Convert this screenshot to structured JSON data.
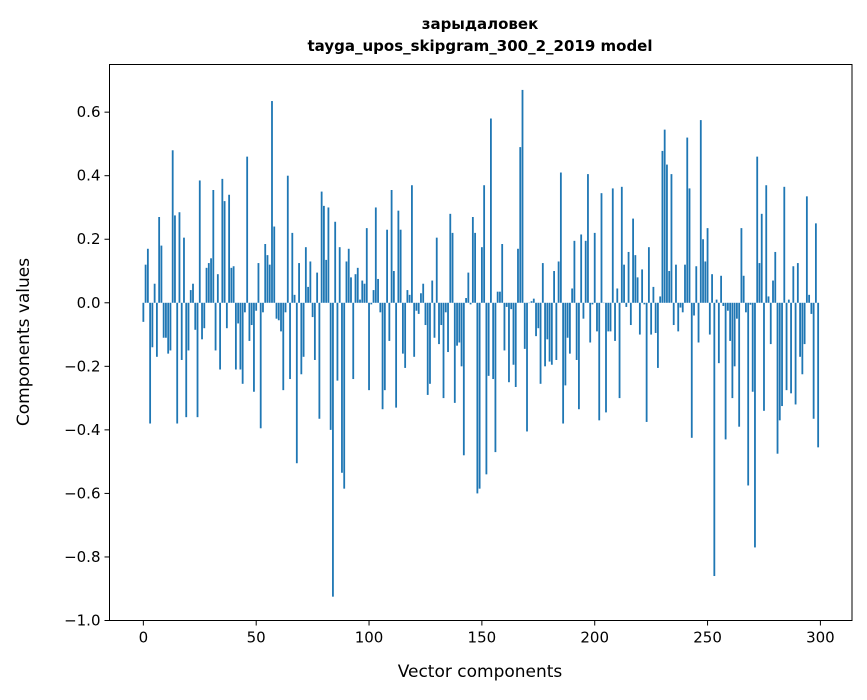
{
  "chart_data": {
    "type": "bar",
    "title": "зарыдаловек",
    "subtitle": "tayga_upos_skipgram_300_2_2019 model",
    "xlabel": "Vector components",
    "ylabel": "Components values",
    "xlim": [
      -15,
      314
    ],
    "ylim": [
      -1.0,
      0.75
    ],
    "xticks": [
      0,
      50,
      100,
      150,
      200,
      250,
      300
    ],
    "xtick_labels": [
      "0",
      "50",
      "100",
      "150",
      "200",
      "250",
      "300"
    ],
    "yticks": [
      -1.0,
      -0.8,
      -0.6,
      -0.4,
      -0.2,
      0.0,
      0.2,
      0.4,
      0.6
    ],
    "ytick_labels": [
      "−1.0",
      "−0.8",
      "−0.6",
      "−0.4",
      "−0.2",
      "0.0",
      "0.2",
      "0.4",
      "0.6"
    ],
    "grid": false,
    "bar_color": "#1f77b4",
    "values": [
      -0.06,
      0.12,
      0.17,
      -0.38,
      -0.14,
      0.06,
      -0.17,
      0.27,
      0.18,
      -0.11,
      -0.11,
      -0.16,
      -0.15,
      0.48,
      0.275,
      -0.38,
      0.285,
      -0.18,
      0.205,
      -0.36,
      -0.15,
      0.04,
      0.06,
      -0.085,
      -0.36,
      0.385,
      -0.115,
      -0.08,
      0.11,
      0.125,
      0.14,
      0.355,
      -0.15,
      0.09,
      -0.21,
      0.39,
      0.32,
      -0.08,
      0.34,
      0.11,
      0.115,
      -0.21,
      -0.065,
      -0.21,
      -0.255,
      -0.03,
      0.46,
      -0.12,
      -0.07,
      -0.28,
      -0.025,
      0.125,
      -0.395,
      -0.03,
      0.185,
      0.15,
      0.12,
      0.635,
      0.24,
      -0.05,
      -0.055,
      -0.09,
      -0.275,
      -0.03,
      0.4,
      -0.24,
      0.22,
      0.025,
      -0.505,
      0.125,
      -0.225,
      -0.17,
      0.175,
      0.05,
      0.13,
      -0.045,
      -0.18,
      0.095,
      -0.365,
      0.35,
      0.305,
      0.135,
      0.3,
      -0.4,
      -0.925,
      0.255,
      -0.245,
      0.175,
      -0.535,
      -0.585,
      0.13,
      0.17,
      0.08,
      -0.24,
      0.09,
      0.11,
      0.01,
      0.07,
      0.06,
      0.235,
      -0.275,
      -0.005,
      0.04,
      0.3,
      0.075,
      -0.03,
      -0.335,
      -0.275,
      0.23,
      -0.12,
      0.355,
      0.1,
      -0.33,
      0.29,
      0.23,
      -0.16,
      -0.205,
      0.04,
      0.025,
      0.37,
      -0.17,
      -0.025,
      -0.035,
      0.03,
      0.06,
      -0.07,
      -0.29,
      -0.255,
      0.07,
      -0.11,
      0.205,
      -0.13,
      -0.07,
      -0.3,
      -0.03,
      -0.155,
      0.28,
      0.22,
      -0.315,
      -0.135,
      -0.125,
      -0.2,
      -0.48,
      0.015,
      0.095,
      -0.005,
      0.27,
      0.22,
      -0.6,
      -0.585,
      0.175,
      0.37,
      -0.54,
      -0.23,
      0.58,
      -0.24,
      -0.47,
      0.035,
      0.035,
      0.185,
      -0.15,
      -0.013,
      -0.25,
      -0.02,
      -0.195,
      -0.265,
      0.17,
      0.49,
      0.67,
      -0.145,
      -0.405,
      0.0,
      0.005,
      0.013,
      -0.105,
      -0.08,
      -0.255,
      0.125,
      -0.2,
      -0.115,
      -0.185,
      -0.195,
      0.1,
      -0.18,
      0.13,
      0.41,
      -0.38,
      -0.26,
      -0.11,
      -0.16,
      0.045,
      0.195,
      -0.18,
      -0.335,
      0.215,
      -0.05,
      0.195,
      0.405,
      -0.125,
      -0.005,
      0.22,
      -0.09,
      -0.37,
      0.345,
      0.0,
      -0.345,
      -0.09,
      -0.09,
      0.36,
      -0.12,
      0.045,
      -0.3,
      0.365,
      0.12,
      -0.013,
      0.16,
      -0.07,
      0.265,
      0.15,
      0.08,
      -0.1,
      0.105,
      -0.005,
      -0.375,
      0.175,
      -0.1,
      0.05,
      -0.095,
      -0.205,
      0.02,
      0.478,
      0.545,
      0.435,
      0.1,
      0.405,
      -0.07,
      0.12,
      -0.09,
      -0.015,
      -0.03,
      0.12,
      0.52,
      0.36,
      -0.425,
      -0.04,
      0.115,
      -0.125,
      0.575,
      0.2,
      0.13,
      0.235,
      -0.1,
      0.09,
      -0.86,
      0.01,
      -0.19,
      0.085,
      -0.01,
      -0.43,
      -0.025,
      -0.12,
      -0.3,
      -0.2,
      -0.05,
      -0.39,
      0.235,
      0.085,
      -0.03,
      -0.575,
      -0.006,
      -0.28,
      -0.77,
      0.46,
      0.125,
      0.28,
      -0.34,
      0.37,
      0.02,
      -0.13,
      0.07,
      0.16,
      -0.475,
      -0.37,
      -0.325,
      0.365,
      -0.275,
      0.01,
      -0.285,
      0.115,
      -0.32,
      0.125,
      -0.17,
      -0.225,
      -0.13,
      0.335,
      0.025,
      -0.035,
      -0.365,
      0.25,
      -0.455
    ]
  }
}
